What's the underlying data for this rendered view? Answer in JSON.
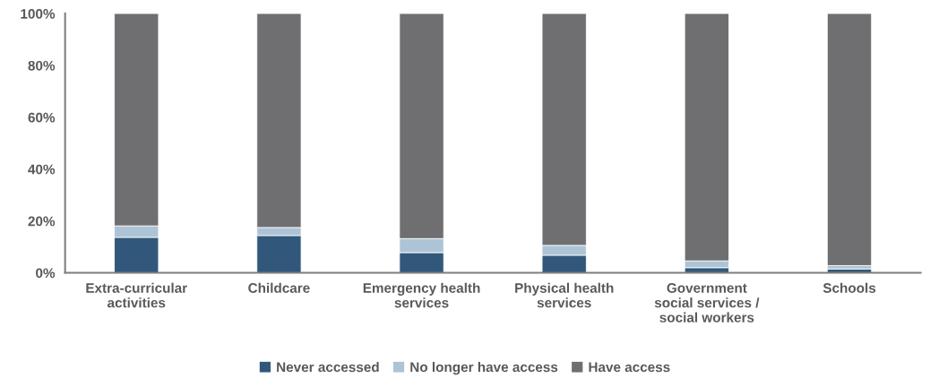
{
  "chart_data": {
    "type": "bar",
    "stacked": true,
    "categories": [
      "Extra-curricular activities",
      "Childcare",
      "Emergency health services",
      "Physical health services",
      "Government social services / social workers",
      "Schools"
    ],
    "series": [
      {
        "name": "Never accessed",
        "color": "#31587a",
        "values": [
          13.7,
          14.4,
          7.8,
          6.8,
          2.0,
          1.5
        ]
      },
      {
        "name": "No longer have access",
        "color": "#adc4d6",
        "values": [
          4.4,
          3.1,
          5.4,
          3.8,
          2.6,
          1.3
        ]
      },
      {
        "name": "Have access",
        "color": "#6f6f71",
        "values": [
          81.9,
          82.5,
          86.8,
          89.4,
          95.4,
          97.2
        ]
      }
    ],
    "ylim": [
      0,
      100
    ],
    "yticks": [
      {
        "value": 0,
        "label": "0%"
      },
      {
        "value": 20,
        "label": "20%"
      },
      {
        "value": 40,
        "label": "40%"
      },
      {
        "value": 60,
        "label": "60%"
      },
      {
        "value": 80,
        "label": "80%"
      },
      {
        "value": 100,
        "label": "100%"
      }
    ],
    "grid": false,
    "legend": "bottom"
  }
}
